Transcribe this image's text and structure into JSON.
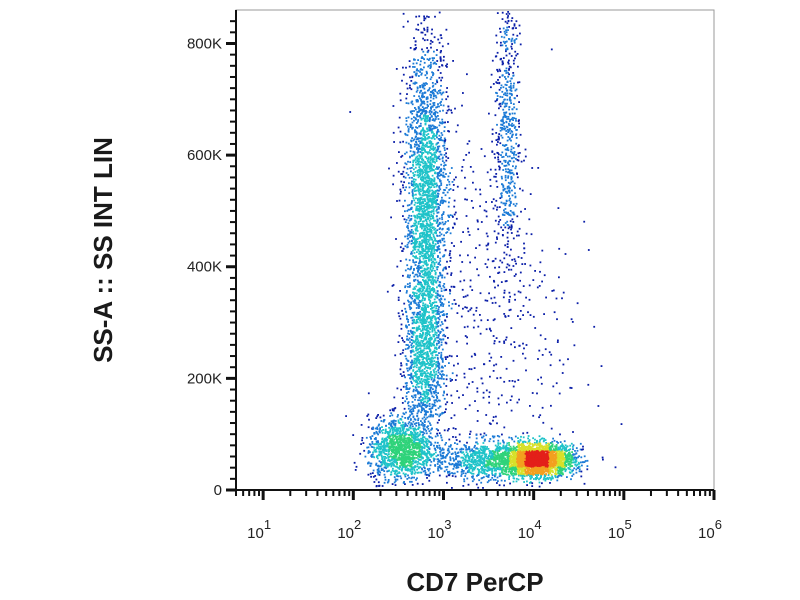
{
  "chart_data": {
    "type": "scatter",
    "plot_style": "density dot plot (pseudocolor)",
    "xlabel": "CD7 PerCP",
    "ylabel": "SS-A :: SS INT LIN",
    "x_scale": "log",
    "y_scale": "linear",
    "xlim": [
      5,
      1000000
    ],
    "ylim": [
      0,
      860000
    ],
    "x_ticks": [
      {
        "value": 10,
        "label": "10",
        "exp": "1"
      },
      {
        "value": 100,
        "label": "10",
        "exp": "2"
      },
      {
        "value": 1000,
        "label": "10",
        "exp": "3"
      },
      {
        "value": 10000,
        "label": "10",
        "exp": "4"
      },
      {
        "value": 100000,
        "label": "10",
        "exp": "5"
      },
      {
        "value": 1000000,
        "label": "10",
        "exp": "6"
      }
    ],
    "y_ticks": [
      {
        "value": 0,
        "label": "0"
      },
      {
        "value": 200000,
        "label": "200K"
      },
      {
        "value": 400000,
        "label": "400K"
      },
      {
        "value": 600000,
        "label": "600K"
      },
      {
        "value": 800000,
        "label": "800K"
      }
    ],
    "grid": false,
    "legend": "none",
    "density_colors": [
      "#0a1ea8",
      "#1c7bd6",
      "#1fc3c9",
      "#2fd37a",
      "#d8e02a",
      "#f3a01f",
      "#e3201a"
    ],
    "populations": [
      {
        "center_x": 630,
        "center_y": 510000,
        "sd_log_x": 0.12,
        "sd_y": 150000,
        "count": 2600
      },
      {
        "center_x": 600,
        "center_y": 230000,
        "sd_log_x": 0.11,
        "sd_y": 70000,
        "count": 900
      },
      {
        "center_x": 330,
        "center_y": 75000,
        "sd_log_x": 0.18,
        "sd_y": 28000,
        "count": 1300
      },
      {
        "center_x": 11000,
        "center_y": 55000,
        "sd_log_x": 0.2,
        "sd_y": 14000,
        "count": 2400
      },
      {
        "center_x": 3000,
        "center_y": 55000,
        "sd_log_x": 0.3,
        "sd_y": 18000,
        "count": 900
      },
      {
        "center_x": 5000,
        "center_y": 650000,
        "sd_log_x": 0.07,
        "sd_y": 140000,
        "count": 600
      },
      {
        "center_x": 3000,
        "center_y": 300000,
        "sd_log_x": 0.45,
        "sd_y": 180000,
        "count": 500
      }
    ]
  }
}
